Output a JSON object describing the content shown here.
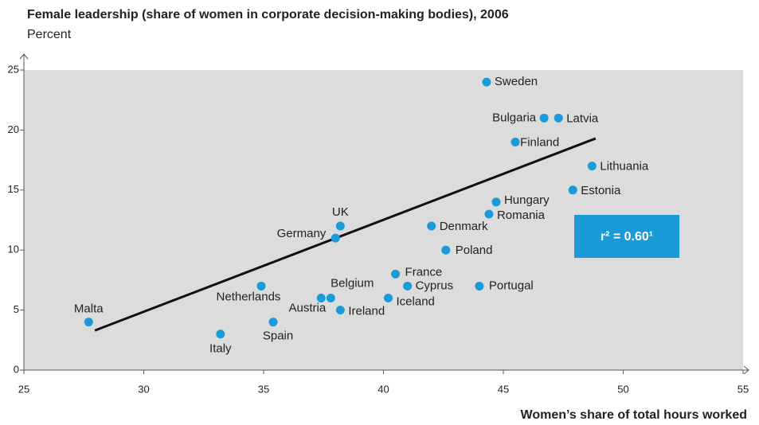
{
  "chart_data": {
    "type": "scatter",
    "title": "Female leadership (share of women in corporate decision-making bodies), 2006",
    "subtitle": "Percent",
    "x_label": "Women’s share of total hours worked",
    "color": "#1a9ad6",
    "xlim": [
      25,
      55
    ],
    "xticks": [
      25,
      30,
      35,
      40,
      45,
      50,
      55
    ],
    "ylim": [
      0,
      25
    ],
    "yticks": [
      0,
      5,
      10,
      15,
      20,
      25
    ],
    "points": [
      {
        "label": "Sweden",
        "x": 44.3,
        "y": 24
      },
      {
        "label": "Bulgaria",
        "x": 46.7,
        "y": 21
      },
      {
        "label": "Latvia",
        "x": 47.3,
        "y": 21
      },
      {
        "label": "Finland",
        "x": 45.5,
        "y": 19
      },
      {
        "label": "Lithuania",
        "x": 48.7,
        "y": 17
      },
      {
        "label": "Estonia",
        "x": 47.9,
        "y": 15
      },
      {
        "label": "Hungary",
        "x": 44.7,
        "y": 14
      },
      {
        "label": "Romania",
        "x": 44.4,
        "y": 13
      },
      {
        "label": "Denmark",
        "x": 42.0,
        "y": 12
      },
      {
        "label": "Poland",
        "x": 42.6,
        "y": 10
      },
      {
        "label": "UK",
        "x": 38.2,
        "y": 12
      },
      {
        "label": "Germany",
        "x": 38.0,
        "y": 11
      },
      {
        "label": "France",
        "x": 40.5,
        "y": 8
      },
      {
        "label": "Cyprus",
        "x": 41.0,
        "y": 7
      },
      {
        "label": "Portugal",
        "x": 44.0,
        "y": 7
      },
      {
        "label": "Iceland",
        "x": 40.2,
        "y": 6
      },
      {
        "label": "Belgium",
        "x": 37.8,
        "y": 6
      },
      {
        "label": "Austria",
        "x": 37.4,
        "y": 6
      },
      {
        "label": "Ireland",
        "x": 38.2,
        "y": 5
      },
      {
        "label": "Netherlands",
        "x": 34.9,
        "y": 7
      },
      {
        "label": "Spain",
        "x": 35.4,
        "y": 4
      },
      {
        "label": "Italy",
        "x": 33.2,
        "y": 3
      },
      {
        "label": "Malta",
        "x": 27.7,
        "y": 4
      }
    ],
    "trendline": {
      "x": [
        27.96,
        48.85
      ],
      "y": [
        3.3,
        19.3
      ]
    },
    "annotation": "r² = 0.60¹"
  }
}
